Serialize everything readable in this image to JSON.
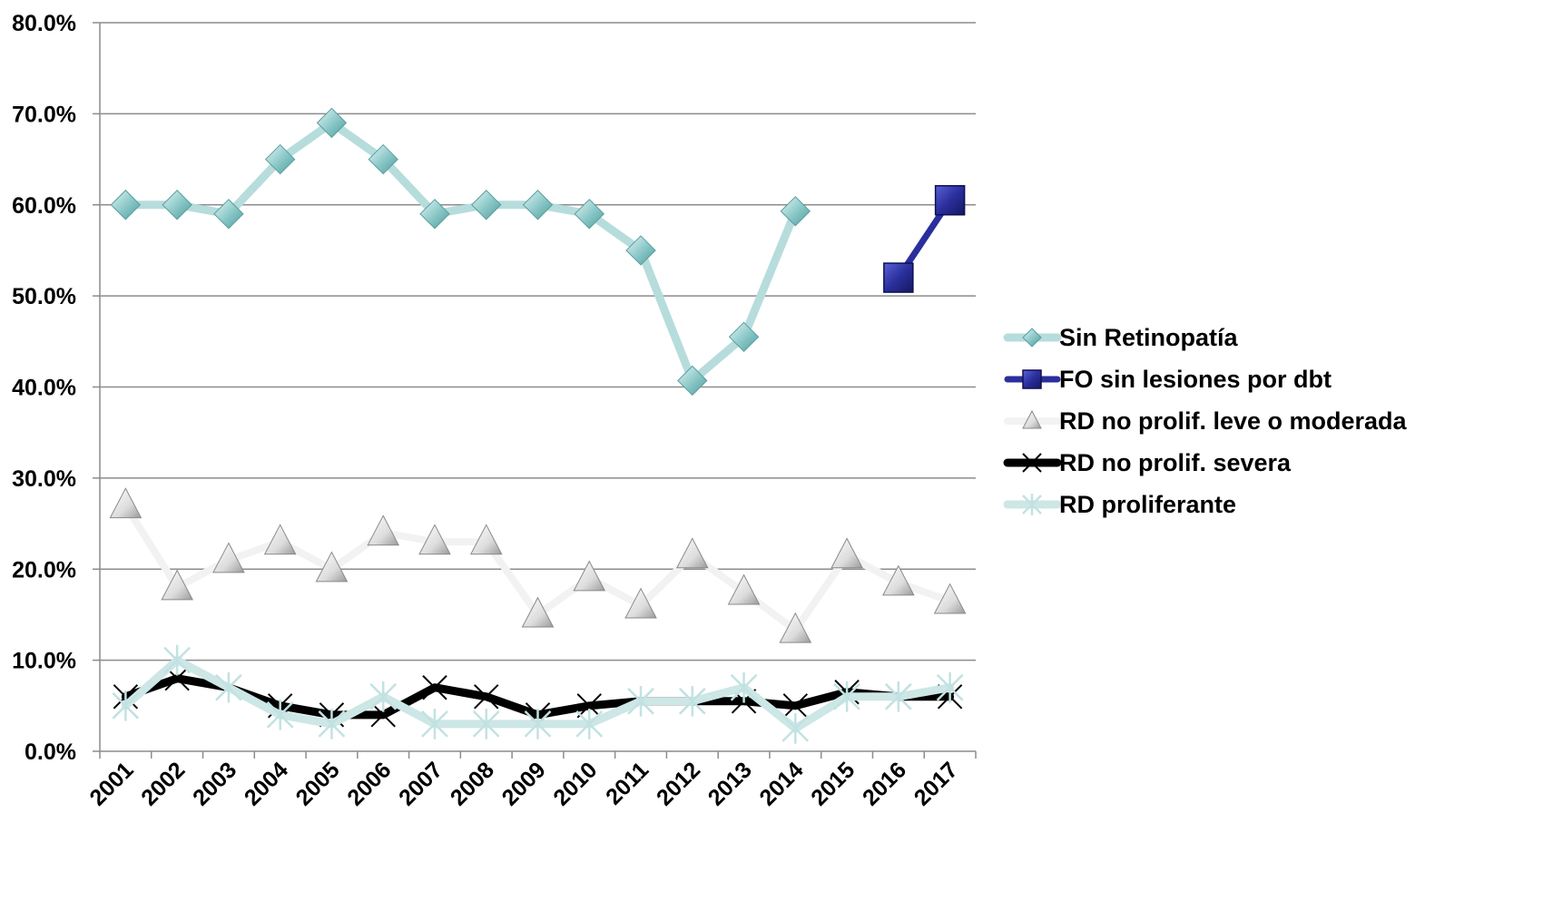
{
  "chart_data": {
    "type": "line",
    "title": "",
    "xlabel": "",
    "ylabel": "",
    "ylim": [
      0,
      80
    ],
    "y_tick_labels": [
      "0.0%",
      "10.0%",
      "20.0%",
      "30.0%",
      "40.0%",
      "50.0%",
      "60.0%",
      "70.0%",
      "80.0%"
    ],
    "categories": [
      "2001",
      "2002",
      "2003",
      "2004",
      "2005",
      "2006",
      "2007",
      "2008",
      "2009",
      "2010",
      "2011",
      "2012",
      "2013",
      "2014",
      "2015",
      "2016",
      "2017"
    ],
    "grid": true,
    "legend_position": "right",
    "series": [
      {
        "name": "Sin Retinopatía",
        "color": "#b7dcdc",
        "marker": "diamond",
        "values": [
          60,
          60,
          59,
          65,
          69,
          65,
          59,
          60,
          60,
          59,
          55,
          40.7,
          45.5,
          59.3,
          null,
          null,
          null
        ]
      },
      {
        "name": "FO sin lesiones por dbt",
        "color": "#2a2f9c",
        "marker": "square",
        "values": [
          null,
          null,
          null,
          null,
          null,
          null,
          null,
          null,
          null,
          null,
          null,
          null,
          null,
          null,
          null,
          52,
          60.5
        ]
      },
      {
        "name": "RD no prolif. leve o moderada",
        "color": "#f2f2f2",
        "marker": "triangle",
        "values": [
          27,
          18,
          21,
          23,
          20,
          24,
          23,
          23,
          15,
          19,
          16,
          21.5,
          17.5,
          13.3,
          21.5,
          18.5,
          16.5
        ]
      },
      {
        "name": "RD no prolif. severa",
        "color": "#000000",
        "marker": "x",
        "values": [
          6,
          8,
          7,
          5,
          4,
          4,
          7,
          6,
          4,
          5,
          5.5,
          5.5,
          5.5,
          5,
          6.5,
          6,
          6
        ]
      },
      {
        "name": "RD proliferante",
        "color": "#cde6e6",
        "marker": "star",
        "values": [
          5,
          10,
          7,
          4,
          3,
          6,
          3,
          3,
          3,
          3,
          5.5,
          5.5,
          7,
          2.5,
          6,
          6,
          7
        ]
      }
    ]
  }
}
